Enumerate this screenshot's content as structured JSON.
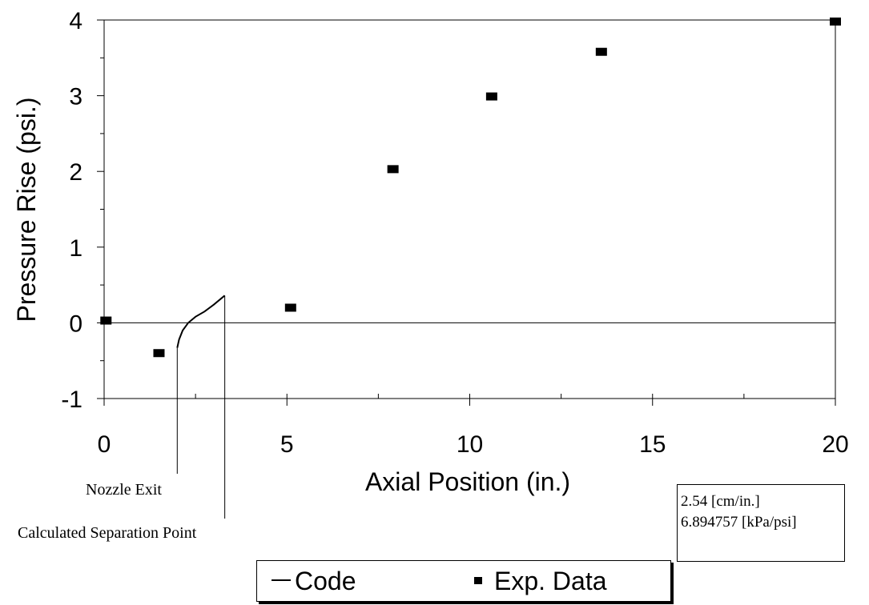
{
  "chart_data": {
    "type": "scatter",
    "xlabel": "Axial Position (in.)",
    "ylabel": "Pressure Rise (psi.)",
    "xlim": [
      0,
      20
    ],
    "ylim": [
      -1,
      4
    ],
    "x_ticks": [
      "0",
      "5",
      "10",
      "15",
      "20"
    ],
    "y_ticks": [
      "-1",
      "0",
      "1",
      "2",
      "3",
      "4"
    ],
    "series": [
      {
        "name": "Code",
        "kind": "line",
        "x": [
          2.0,
          2.05,
          2.15,
          2.3,
          2.5,
          2.75,
          3.0,
          3.3
        ],
        "y": [
          -0.33,
          -0.22,
          -0.1,
          0.0,
          0.08,
          0.15,
          0.24,
          0.36
        ]
      },
      {
        "name": "Exp. Data",
        "kind": "marker",
        "x": [
          0.05,
          1.5,
          5.1,
          7.9,
          10.6,
          13.6,
          20.0
        ],
        "y": [
          0.03,
          -0.4,
          0.2,
          2.03,
          2.99,
          3.58,
          3.98
        ]
      }
    ],
    "annotations": [
      {
        "text": "Nozzle Exit",
        "x": 2.0
      },
      {
        "text": "Calculated Separation Point",
        "x": 3.3
      }
    ],
    "conversion_box": [
      "2.54 [cm/in.]",
      "6.894757 [kPa/psi]"
    ],
    "legend": [
      "Code",
      "Exp. Data"
    ],
    "grid": false,
    "legend_position": "bottom"
  }
}
